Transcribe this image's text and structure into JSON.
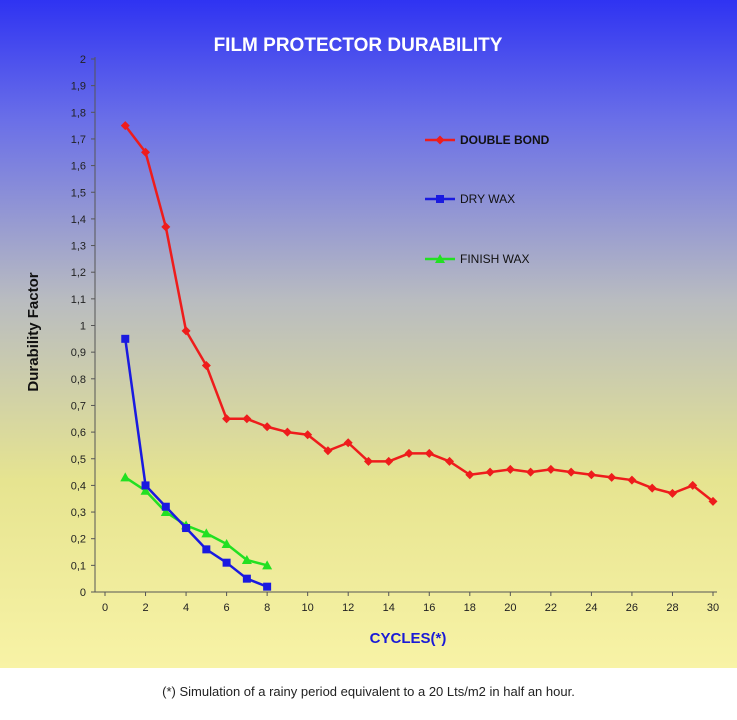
{
  "chart_data": {
    "type": "line",
    "title": "FILM PROTECTOR DURABILITY",
    "xlabel": "CYCLES(*)",
    "ylabel": "Durability Factor",
    "xlim": [
      0,
      30
    ],
    "ylim": [
      0,
      2
    ],
    "x_ticks": [
      0,
      2,
      4,
      6,
      8,
      10,
      12,
      14,
      16,
      18,
      20,
      22,
      24,
      26,
      28,
      30
    ],
    "y_ticks": [
      "0",
      "0,1",
      "0,2",
      "0,3",
      "0,4",
      "0,5",
      "0,6",
      "0,7",
      "0,8",
      "0,9",
      "1",
      "1,1",
      "1,2",
      "1,3",
      "1,4",
      "1,5",
      "1,6",
      "1,7",
      "1,8",
      "1,9",
      "2"
    ],
    "grid": false,
    "legend_position": "right",
    "series": [
      {
        "name": "DOUBLE BOND",
        "color": "#ee1c1c",
        "marker": "diamond",
        "x": [
          1,
          2,
          3,
          4,
          5,
          6,
          7,
          8,
          9,
          10,
          11,
          12,
          13,
          14,
          15,
          16,
          17,
          18,
          19,
          20,
          21,
          22,
          23,
          24,
          25,
          26,
          27,
          28,
          29,
          30
        ],
        "y": [
          1.75,
          1.65,
          1.37,
          0.98,
          0.85,
          0.65,
          0.65,
          0.62,
          0.6,
          0.59,
          0.53,
          0.56,
          0.49,
          0.49,
          0.52,
          0.52,
          0.49,
          0.44,
          0.45,
          0.46,
          0.45,
          0.46,
          0.45,
          0.44,
          0.43,
          0.42,
          0.39,
          0.37,
          0.4,
          0.34
        ]
      },
      {
        "name": "DRY WAX",
        "color": "#1a1ae0",
        "marker": "square",
        "x": [
          1,
          2,
          3,
          4,
          5,
          6,
          7,
          8
        ],
        "y": [
          0.95,
          0.4,
          0.32,
          0.24,
          0.16,
          0.11,
          0.05,
          0.02
        ]
      },
      {
        "name": "FINISH WAX",
        "color": "#22e022",
        "marker": "triangle",
        "x": [
          1,
          2,
          3,
          4,
          5,
          6,
          7,
          8
        ],
        "y": [
          0.43,
          0.38,
          0.3,
          0.25,
          0.22,
          0.18,
          0.12,
          0.1
        ]
      }
    ]
  },
  "footnote": "(*) Simulation of a rainy period equivalent to a 20 Lts/m2 in half an hour."
}
